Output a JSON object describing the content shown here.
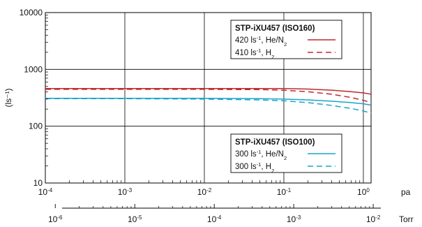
{
  "chart_data": {
    "type": "line",
    "ylabel": "(ls⁻¹)",
    "ylim": [
      10,
      10000
    ],
    "yscale": "log",
    "yticks": [
      {
        "value": 10,
        "label": "10"
      },
      {
        "value": 100,
        "label": "100"
      },
      {
        "value": 1000,
        "label": "1000"
      },
      {
        "value": 10000,
        "label": "10000"
      }
    ],
    "x_axes": [
      {
        "unit": "pa",
        "xlim": [
          0.0001,
          1.25
        ],
        "scale": "log",
        "ticks": [
          {
            "value": 0.0001,
            "base": "10",
            "exp": "-4"
          },
          {
            "value": 0.001,
            "base": "10",
            "exp": "-3"
          },
          {
            "value": 0.01,
            "base": "10",
            "exp": "-2"
          },
          {
            "value": 0.1,
            "base": "10",
            "exp": "-1"
          },
          {
            "value": 1,
            "base": "10",
            "exp": "0"
          }
        ]
      },
      {
        "unit": "Torr",
        "xlim": [
          7.5e-07,
          0.0094
        ],
        "scale": "log",
        "ticks": [
          {
            "value": 1e-06,
            "base": "10",
            "exp": "-6"
          },
          {
            "value": 1e-05,
            "base": "10",
            "exp": "-5"
          },
          {
            "value": 0.0001,
            "base": "10",
            "exp": "-4"
          },
          {
            "value": 0.001,
            "base": "10",
            "exp": "-3"
          },
          {
            "value": 0.01,
            "base": "10",
            "exp": "-2"
          }
        ]
      }
    ],
    "grid": true,
    "legend_groups": [
      {
        "title": "STP-iXU457 (ISO160)",
        "placement": "top-right",
        "entries": [
          {
            "pre": "420 ls",
            "sup": "-1",
            "mid": ", He/N",
            "sub": "2",
            "series": 0
          },
          {
            "pre": "410 ls",
            "sup": "-1",
            "mid": ", H",
            "sub": "2",
            "series": 1
          }
        ]
      },
      {
        "title": "STP-iXU457 (ISO100)",
        "placement": "bottom-right",
        "entries": [
          {
            "pre": "300 ls",
            "sup": "-1",
            "mid": ", He/N",
            "sub": "2",
            "series": 2
          },
          {
            "pre": "300 ls",
            "sup": "-1",
            "mid": ", H",
            "sub": "2",
            "series": 3
          }
        ]
      }
    ],
    "series": [
      {
        "name": "420 ls-1, He/N2",
        "color": "#c0282e",
        "dash": "solid",
        "x": [
          0.0001,
          0.001,
          0.01,
          0.05,
          0.1,
          0.2,
          0.4,
          0.7,
          1.0,
          1.25
        ],
        "y": [
          460,
          460,
          460,
          460,
          460,
          450,
          430,
          405,
          385,
          365
        ]
      },
      {
        "name": "410 ls-1, H2",
        "color": "#c0282e",
        "dash": "dashed",
        "x": [
          0.0001,
          0.001,
          0.01,
          0.05,
          0.1,
          0.2,
          0.4,
          0.7,
          1.0,
          1.25
        ],
        "y": [
          445,
          445,
          445,
          440,
          430,
          405,
          365,
          320,
          285,
          260
        ]
      },
      {
        "name": "300 ls-1, He/N2",
        "color": "#1aa5c9",
        "dash": "solid",
        "x": [
          0.0001,
          0.001,
          0.01,
          0.05,
          0.1,
          0.2,
          0.4,
          0.7,
          1.0,
          1.25
        ],
        "y": [
          310,
          310,
          310,
          305,
          300,
          290,
          275,
          260,
          248,
          235
        ]
      },
      {
        "name": "300 ls-1, H2",
        "color": "#1aa5c9",
        "dash": "dashed",
        "x": [
          0.0001,
          0.001,
          0.01,
          0.05,
          0.1,
          0.2,
          0.4,
          0.7,
          1.0,
          1.25
        ],
        "y": [
          305,
          305,
          300,
          290,
          280,
          260,
          232,
          205,
          185,
          170
        ]
      }
    ]
  }
}
